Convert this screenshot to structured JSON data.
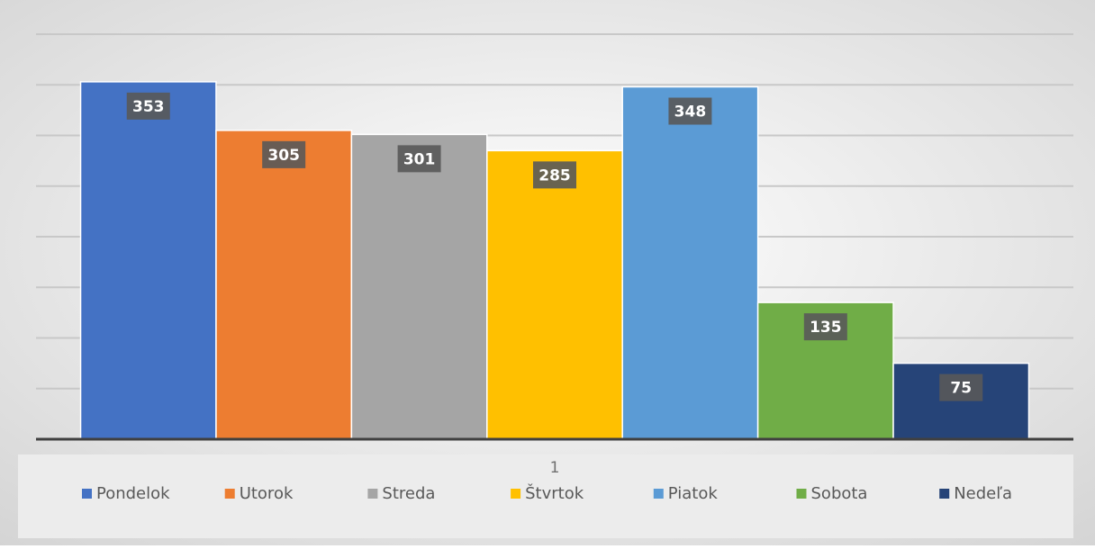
{
  "chart_data": {
    "type": "bar",
    "categories": [
      "1"
    ],
    "series": [
      {
        "name": "Pondelok",
        "color": "#4472c4",
        "values": [
          353
        ]
      },
      {
        "name": "Utorok",
        "color": "#ed7d31",
        "values": [
          305
        ]
      },
      {
        "name": "Streda",
        "color": "#a5a5a5",
        "values": [
          301
        ]
      },
      {
        "name": "Štvrtok",
        "color": "#ffc000",
        "values": [
          285
        ]
      },
      {
        "name": "Piatok",
        "color": "#5b9bd5",
        "values": [
          348
        ]
      },
      {
        "name": "Sobota",
        "color": "#70ad47",
        "values": [
          135
        ]
      },
      {
        "name": "Nedeľa",
        "color": "#264478",
        "values": [
          75
        ]
      }
    ],
    "ylim": [
      0,
      400
    ],
    "yticks": [
      0,
      50,
      100,
      150,
      200,
      250,
      300,
      350,
      400
    ],
    "grid": true,
    "legend": "bottom"
  }
}
